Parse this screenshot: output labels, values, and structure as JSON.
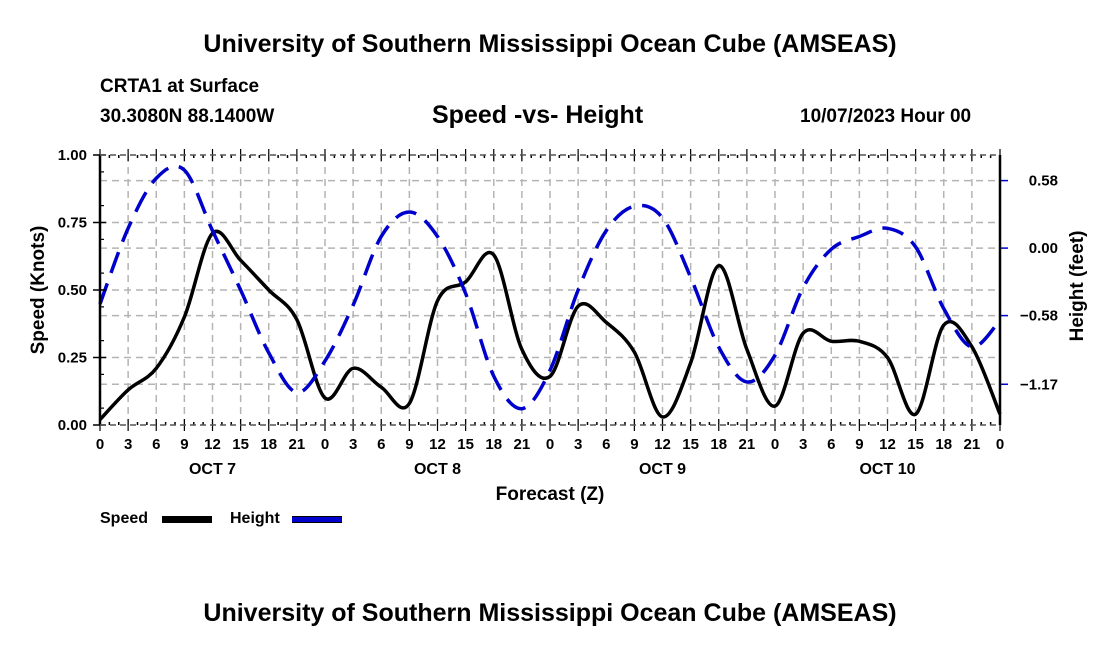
{
  "header": {
    "title": "University of Southern Mississippi Ocean Cube (AMSEAS)",
    "station": "CRTA1 at Surface",
    "coordinates": "30.3080N  88.1400W",
    "subtitle": "Speed -vs- Height",
    "datetime": "10/07/2023 Hour 00"
  },
  "footer": {
    "title": "University of Southern Mississippi Ocean Cube (AMSEAS)"
  },
  "legend": {
    "speed_label": "Speed",
    "height_label": "Height"
  },
  "colors": {
    "speed": "#000000",
    "height": "#0000cc",
    "grid": "#b4b4b4"
  },
  "chart_data": {
    "type": "line",
    "title": "Speed -vs- Height",
    "xlabel": "Forecast (Z)",
    "ylabel": "Speed (Knots)",
    "y2label": "Height (feet)",
    "xlim": [
      0,
      96
    ],
    "ylim": [
      0,
      1.0
    ],
    "y2lim": [
      -1.52,
      0.8
    ],
    "grid": true,
    "legend_position": "bottom-left",
    "x_tick_labels": [
      "0",
      "3",
      "6",
      "9",
      "12",
      "15",
      "18",
      "21",
      "0",
      "3",
      "6",
      "9",
      "12",
      "15",
      "18",
      "21",
      "0",
      "3",
      "6",
      "9",
      "12",
      "15",
      "18",
      "21",
      "0",
      "3",
      "6",
      "9",
      "12",
      "15",
      "18",
      "21",
      "0"
    ],
    "day_labels": [
      {
        "label": "OCT 7",
        "hour": 12
      },
      {
        "label": "OCT 8",
        "hour": 36
      },
      {
        "label": "OCT 9",
        "hour": 60
      },
      {
        "label": "OCT 10",
        "hour": 84
      }
    ],
    "y_ticks": [
      "0.00",
      "0.25",
      "0.50",
      "0.75",
      "1.00"
    ],
    "y2_ticks": [
      "0.58",
      "0.00",
      "-0.58",
      "-1.17"
    ],
    "x": [
      0,
      3,
      6,
      9,
      12,
      15,
      18,
      21,
      24,
      27,
      30,
      33,
      36,
      39,
      42,
      45,
      48,
      51,
      54,
      57,
      60,
      63,
      66,
      69,
      72,
      75,
      78,
      81,
      84,
      87,
      90,
      93,
      96
    ],
    "series": [
      {
        "name": "Speed",
        "axis": "left",
        "style": "solid",
        "values": [
          0.02,
          0.13,
          0.21,
          0.4,
          0.71,
          0.61,
          0.5,
          0.39,
          0.1,
          0.21,
          0.14,
          0.08,
          0.46,
          0.53,
          0.63,
          0.28,
          0.18,
          0.44,
          0.38,
          0.27,
          0.03,
          0.23,
          0.59,
          0.28,
          0.07,
          0.34,
          0.31,
          0.31,
          0.25,
          0.04,
          0.37,
          0.29,
          0.04
        ]
      },
      {
        "name": "Height",
        "axis": "right",
        "style": "dashed",
        "values": [
          -0.48,
          0.17,
          0.6,
          0.67,
          0.15,
          -0.36,
          -0.9,
          -1.24,
          -0.97,
          -0.49,
          0.1,
          0.31,
          0.1,
          -0.39,
          -1.1,
          -1.38,
          -1.05,
          -0.36,
          0.15,
          0.36,
          0.26,
          -0.25,
          -0.85,
          -1.15,
          -0.92,
          -0.34,
          -0.01,
          0.1,
          0.17,
          0.01,
          -0.52,
          -0.85,
          -0.62
        ]
      }
    ]
  }
}
